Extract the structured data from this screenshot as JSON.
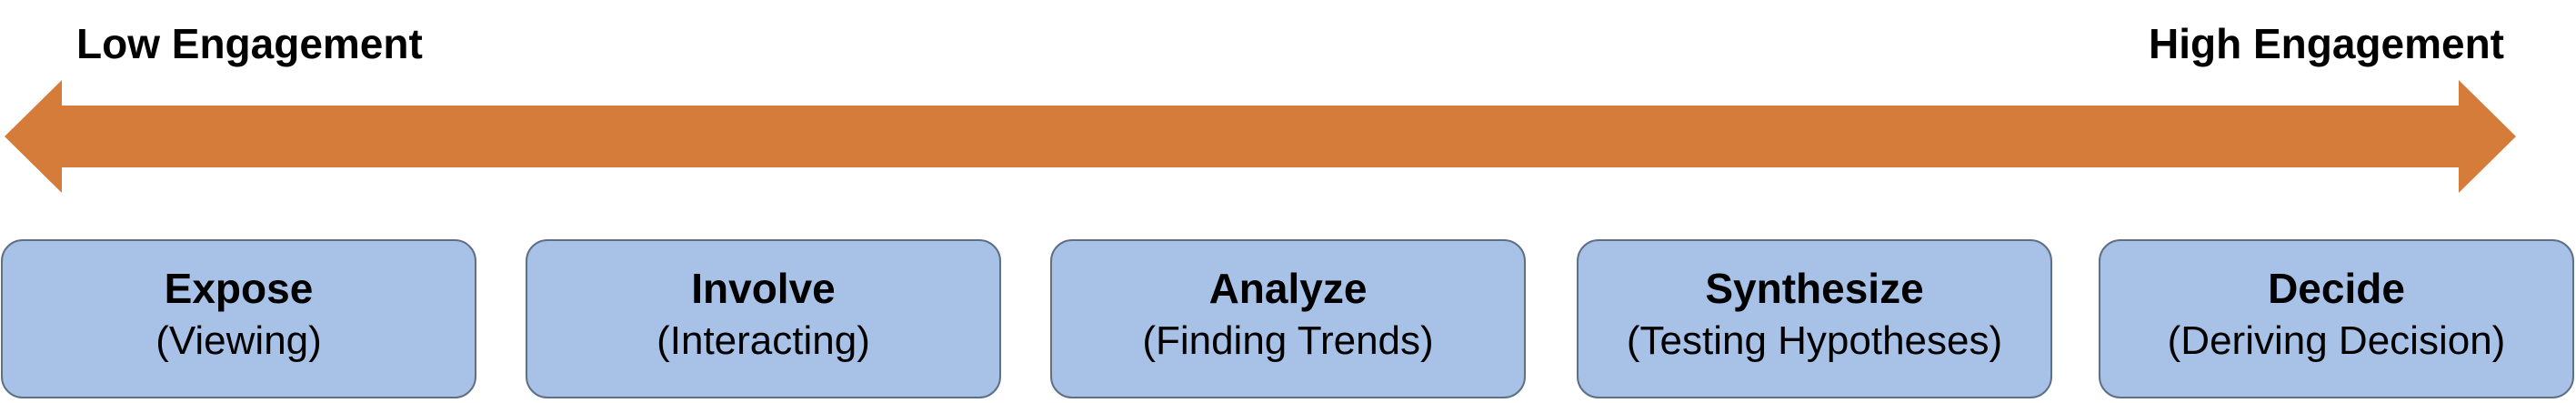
{
  "scale": {
    "low_label": "Low Engagement",
    "high_label": "High Engagement",
    "arrow_color": "#D67C3A"
  },
  "stage_color": "#A8C1E7",
  "stages": [
    {
      "title": "Expose",
      "subtitle": "(Viewing)"
    },
    {
      "title": "Involve",
      "subtitle": "(Interacting)"
    },
    {
      "title": "Analyze",
      "subtitle": "(Finding Trends)"
    },
    {
      "title": "Synthesize",
      "subtitle": "(Testing Hypotheses)"
    },
    {
      "title": "Decide",
      "subtitle": "(Deriving Decision)"
    }
  ]
}
